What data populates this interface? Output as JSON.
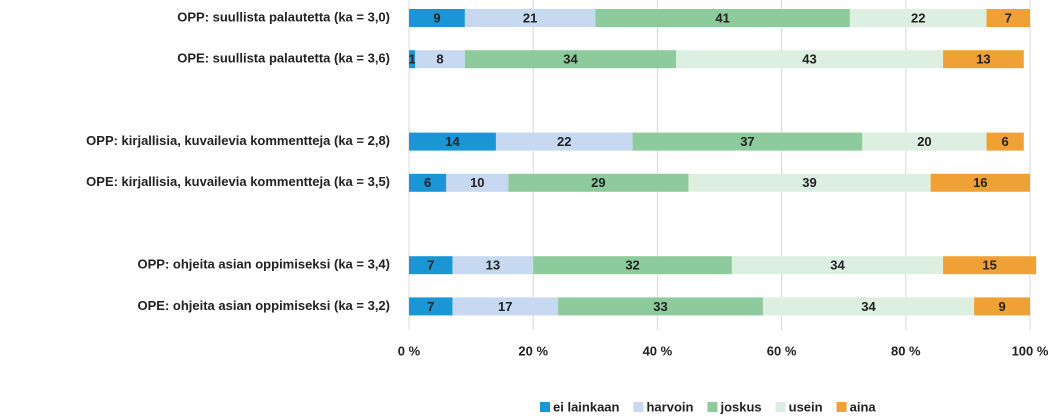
{
  "chart_data": {
    "type": "bar",
    "orientation": "horizontal",
    "stacked": true,
    "categories": [
      "OPP: suullista palautetta (ka = 3,0)",
      "OPE: suullista palautetta (ka = 3,6)",
      null,
      "OPP: kirjallisia, kuvailevia kommentteja (ka = 2,8)",
      "OPE: kirjallisia, kuvailevia kommentteja (ka = 3,5)",
      null,
      "OPP: ohjeita asian oppimiseksi (ka = 3,4)",
      "OPE: ohjeita asian oppimiseksi (ka = 3,2)"
    ],
    "series": [
      {
        "name": "ei lainkaan",
        "color": "#1a96d4",
        "values": [
          9,
          1,
          null,
          14,
          6,
          null,
          7,
          7
        ]
      },
      {
        "name": "harvoin",
        "color": "#c6d9f0",
        "values": [
          21,
          8,
          null,
          22,
          10,
          null,
          13,
          17
        ]
      },
      {
        "name": "joskus",
        "color": "#8ecb9c",
        "values": [
          41,
          34,
          null,
          37,
          29,
          null,
          32,
          33
        ]
      },
      {
        "name": "usein",
        "color": "#dcefe1",
        "values": [
          22,
          43,
          null,
          20,
          39,
          null,
          34,
          34
        ]
      },
      {
        "name": "aina",
        "color": "#f0a136",
        "values": [
          7,
          13,
          null,
          6,
          16,
          null,
          15,
          9
        ]
      }
    ],
    "xlim": [
      0,
      100
    ],
    "xticks": [
      {
        "value": 0,
        "label": "0 %"
      },
      {
        "value": 20,
        "label": "20 %"
      },
      {
        "value": 40,
        "label": "40 %"
      },
      {
        "value": 60,
        "label": "60 %"
      },
      {
        "value": 80,
        "label": "80 %"
      },
      {
        "value": 100,
        "label": "100 %"
      }
    ],
    "grid": true,
    "legend": "bottom"
  }
}
